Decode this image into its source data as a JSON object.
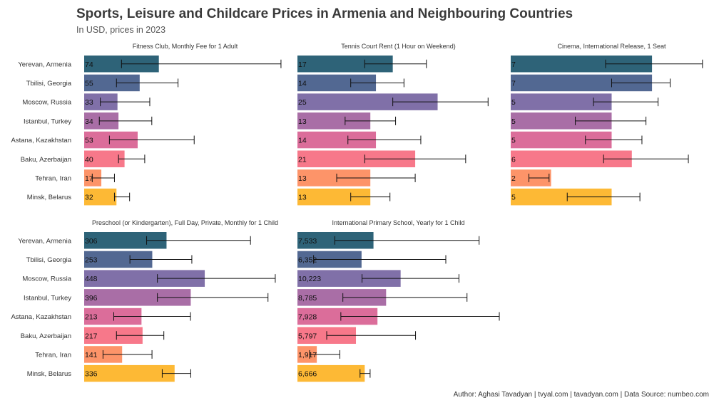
{
  "title": "Sports, Leisure and Childcare Prices in Armenia and Neighbouring Countries",
  "subtitle": "In USD, prices in 2023",
  "caption": "Author: Aghasi Tavadyan   |   tvyal.com   |   tavadyan.com   |   Data Source: numbeo.com",
  "colors": {
    "Yerevan, Armenia": "#2e6378",
    "Tbilisi, Georgia": "#526892",
    "Moscow, Russia": "#8070a8",
    "Istanbul, Turkey": "#a96ea6",
    "Astana, Kazakhstan": "#db6d9a",
    "Baku, Azerbaijan": "#f7788a",
    "Tehran, Iran": "#fd9469",
    "Minsk, Belarus": "#fdb935"
  },
  "chart_data": [
    {
      "type": "bar",
      "orientation": "horizontal",
      "title": "Fitness Club, Monthly Fee for 1 Adult",
      "categories": [
        "Yerevan, Armenia",
        "Tbilisi, Georgia",
        "Moscow, Russia",
        "Istanbul, Turkey",
        "Astana, Kazakhstan",
        "Baku, Azerbaijan",
        "Tehran, Iran",
        "Minsk, Belarus"
      ],
      "values": [
        74,
        55,
        33,
        34,
        53,
        40,
        17,
        32
      ],
      "labels": [
        "74",
        "55",
        "33",
        "34",
        "53",
        "40",
        "17",
        "32"
      ],
      "error_low": [
        37,
        32,
        16,
        15,
        25,
        34,
        8,
        30
      ],
      "error_high": [
        195,
        93,
        65,
        67,
        109,
        60,
        30,
        45
      ],
      "xlim": [
        0,
        200
      ]
    },
    {
      "type": "bar",
      "orientation": "horizontal",
      "title": "Tennis Court Rent (1 Hour on Weekend)",
      "categories": [
        "Yerevan, Armenia",
        "Tbilisi, Georgia",
        "Moscow, Russia",
        "Istanbul, Turkey",
        "Astana, Kazakhstan",
        "Baku, Azerbaijan",
        "Tehran, Iran",
        "Minsk, Belarus"
      ],
      "values": [
        17,
        14,
        25,
        13,
        14,
        21,
        13,
        13
      ],
      "labels": [
        "17",
        "14",
        "25",
        "13",
        "14",
        "21",
        "13",
        "13"
      ],
      "error_low": [
        12,
        9.5,
        17,
        8.5,
        9,
        12,
        7,
        9.5
      ],
      "error_high": [
        23,
        19,
        34,
        17.5,
        22,
        30,
        21,
        16.5
      ],
      "xlim": [
        0,
        36
      ]
    },
    {
      "type": "bar",
      "orientation": "horizontal",
      "title": "Cinema, International Release, 1 Seat",
      "categories": [
        "Yerevan, Armenia",
        "Tbilisi, Georgia",
        "Moscow, Russia",
        "Istanbul, Turkey",
        "Astana, Kazakhstan",
        "Baku, Azerbaijan",
        "Tehran, Iran",
        "Minsk, Belarus"
      ],
      "values": [
        7,
        7,
        5,
        5,
        5,
        6,
        2,
        5
      ],
      "labels": [
        "7",
        "7",
        "5",
        "5",
        "5",
        "6",
        "2",
        "5"
      ],
      "error_low": [
        4.7,
        5.0,
        4.1,
        3.2,
        3.7,
        4.6,
        0.9,
        2.8
      ],
      "error_high": [
        9.5,
        7.9,
        7.3,
        6.7,
        6.5,
        8.8,
        1.9,
        6.4
      ],
      "xlim": [
        0,
        10
      ]
    },
    {
      "type": "bar",
      "orientation": "horizontal",
      "title": "Preschool (or Kindergarten), Full Day, Private, Monthly for 1 Child",
      "categories": [
        "Yerevan, Armenia",
        "Tbilisi, Georgia",
        "Moscow, Russia",
        "Istanbul, Turkey",
        "Astana, Kazakhstan",
        "Baku, Azerbaijan",
        "Tehran, Iran",
        "Minsk, Belarus"
      ],
      "values": [
        306,
        253,
        448,
        396,
        213,
        217,
        141,
        336
      ],
      "labels": [
        "306",
        "253",
        "448",
        "396",
        "213",
        "217",
        "141",
        "336"
      ],
      "error_low": [
        232,
        170,
        272,
        272,
        110,
        120,
        70,
        290
      ],
      "error_high": [
        618,
        400,
        710,
        683,
        395,
        296,
        252,
        396
      ],
      "xlim": [
        0,
        750
      ]
    },
    {
      "type": "bar",
      "orientation": "horizontal",
      "title": "International Primary School, Yearly for 1 Child",
      "categories": [
        "Yerevan, Armenia",
        "Tbilisi, Georgia",
        "Moscow, Russia",
        "Istanbul, Turkey",
        "Astana, Kazakhstan",
        "Baku, Azerbaijan",
        "Tehran, Iran",
        "Minsk, Belarus"
      ],
      "values": [
        7533,
        6352,
        10223,
        8785,
        7928,
        5797,
        1917,
        6666
      ],
      "labels": [
        "7,533",
        "6,352",
        "10,223",
        "8,785",
        "7,928",
        "5,797",
        "1,917",
        "6,666"
      ],
      "error_low": [
        3700,
        1600,
        6400,
        4500,
        4300,
        2900,
        1200,
        6200
      ],
      "error_high": [
        18000,
        14700,
        16000,
        16800,
        20000,
        11700,
        4200,
        7200
      ],
      "xlim": [
        0,
        20000
      ]
    }
  ]
}
